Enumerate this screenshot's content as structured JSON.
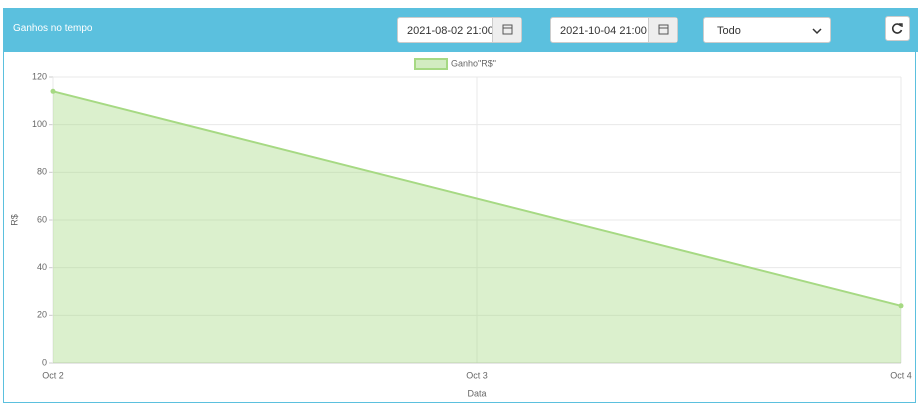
{
  "header": {
    "title": "Ganhos no tempo",
    "date_from": "2021-08-02 21:00",
    "date_to": "2021-10-04 21:00",
    "period": "Todo"
  },
  "chart_data": {
    "type": "area",
    "x": [
      "Oct 2",
      "Oct 4"
    ],
    "xticks": [
      "Oct 2",
      "Oct 3",
      "Oct 4"
    ],
    "series": [
      {
        "name": "Ganho\"R$\"",
        "color": "#a6d983",
        "values": [
          114,
          24
        ]
      }
    ],
    "ylim": [
      0,
      120
    ],
    "yticks": [
      0,
      20,
      40,
      60,
      80,
      100,
      120
    ],
    "xlabel": "Data",
    "ylabel": "R$",
    "grid": true,
    "legend": "top"
  }
}
